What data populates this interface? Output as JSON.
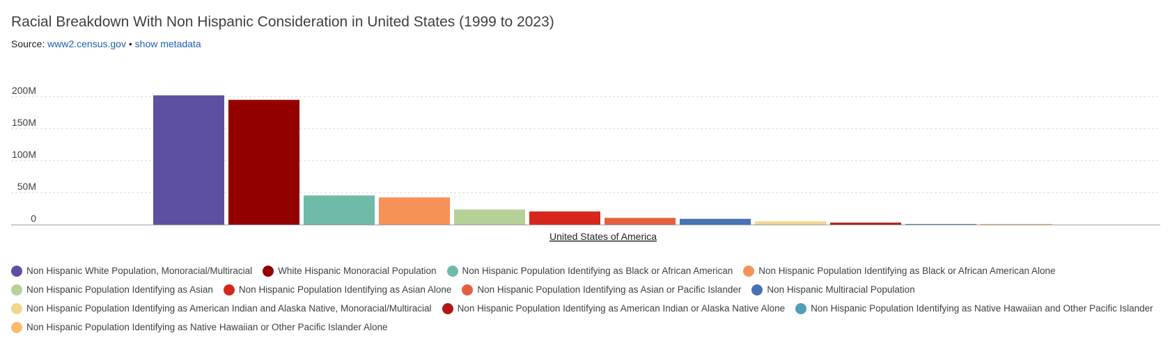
{
  "header": {
    "title": "Racial Breakdown With Non Hispanic Consideration in United States (1999 to 2023)",
    "source_prefix": "Source:",
    "source_link": "www2.census.gov",
    "separator": "•",
    "metadata_link": "show metadata"
  },
  "chart_data": {
    "type": "bar",
    "title": "Racial Breakdown With Non Hispanic Consideration in United States (1999 to 2023)",
    "categories": [
      "United States of America"
    ],
    "ylim": [
      0,
      200000000
    ],
    "yticks": [
      {
        "value": 0,
        "label": "0"
      },
      {
        "value": 50000000,
        "label": "50M"
      },
      {
        "value": 100000000,
        "label": "100M"
      },
      {
        "value": 150000000,
        "label": "150M"
      },
      {
        "value": 200000000,
        "label": "200M"
      }
    ],
    "grid": true,
    "legend_position": "bottom",
    "series": [
      {
        "name": "Non Hispanic White Population, Monoracial/Multiracial",
        "color": "#5e50a1",
        "values": [
          202000000
        ]
      },
      {
        "name": "White Hispanic Monoracial Population",
        "color": "#930000",
        "values": [
          195000000
        ]
      },
      {
        "name": "Non Hispanic Population Identifying as Black or African American",
        "color": "#6fbaa8",
        "values": [
          45500000
        ]
      },
      {
        "name": "Non Hispanic Population Identifying as Black or African American Alone",
        "color": "#f69257",
        "values": [
          42500000
        ]
      },
      {
        "name": "Non Hispanic Population Identifying as Asian",
        "color": "#b6d198",
        "values": [
          23500000
        ]
      },
      {
        "name": "Non Hispanic Population Identifying as Asian Alone",
        "color": "#d7261d",
        "values": [
          20500000
        ]
      },
      {
        "name": "Non Hispanic Population Identifying as Asian or Pacific Islander",
        "color": "#e4603f",
        "values": [
          10500000
        ]
      },
      {
        "name": "Non Hispanic Multiracial Population",
        "color": "#4772b4",
        "values": [
          9000000
        ]
      },
      {
        "name": "Non Hispanic Population Identifying as American Indian and Alaska Native, Monoracial/Multiracial",
        "color": "#efd68a",
        "values": [
          5000000
        ]
      },
      {
        "name": "Non Hispanic Population Identifying as American Indian or Alaska Native Alone",
        "color": "#b21616",
        "values": [
          3000000
        ]
      },
      {
        "name": "Non Hispanic Population Identifying as Native Hawaiian and Other Pacific Islander",
        "color": "#4e9eb6",
        "values": [
          1000000
        ]
      },
      {
        "name": "Non Hispanic Population Identifying as Native Hawaiian or Other Pacific Islander Alone",
        "color": "#fdbb6c",
        "values": [
          700000
        ]
      }
    ]
  }
}
